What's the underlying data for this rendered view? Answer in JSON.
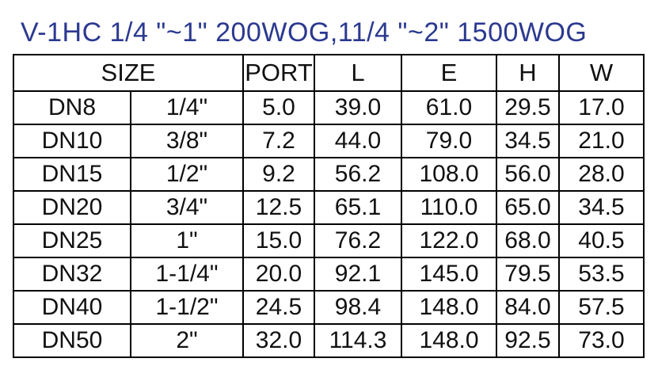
{
  "title": "V-1HC 1/4 \"~1\" 200WOG,11/4 \"~2\" 1500WOG",
  "colors": {
    "title": "#2b3990",
    "text": "#111111",
    "border": "#000000",
    "background": "#ffffff"
  },
  "table": {
    "header": [
      "SIZE",
      "PORT",
      "L",
      "E",
      "H",
      "W"
    ],
    "rows": [
      [
        "DN8",
        "1/4\"",
        "5.0",
        "39.0",
        "61.0",
        "29.5",
        "17.0"
      ],
      [
        "DN10",
        "3/8\"",
        "7.2",
        "44.0",
        "79.0",
        "34.5",
        "21.0"
      ],
      [
        "DN15",
        "1/2\"",
        "9.2",
        "56.2",
        "108.0",
        "56.0",
        "28.0"
      ],
      [
        "DN20",
        "3/4\"",
        "12.5",
        "65.1",
        "110.0",
        "65.0",
        "34.5"
      ],
      [
        "DN25",
        "1\"",
        "15.0",
        "76.2",
        "122.0",
        "68.0",
        "40.5"
      ],
      [
        "DN32",
        "1-1/4\"",
        "20.0",
        "92.1",
        "145.0",
        "79.5",
        "53.5"
      ],
      [
        "DN40",
        "1-1/2\"",
        "24.5",
        "98.4",
        "148.0",
        "84.0",
        "57.5"
      ],
      [
        "DN50",
        "2\"",
        "32.0",
        "114.3",
        "148.0",
        "92.5",
        "73.0"
      ]
    ]
  }
}
